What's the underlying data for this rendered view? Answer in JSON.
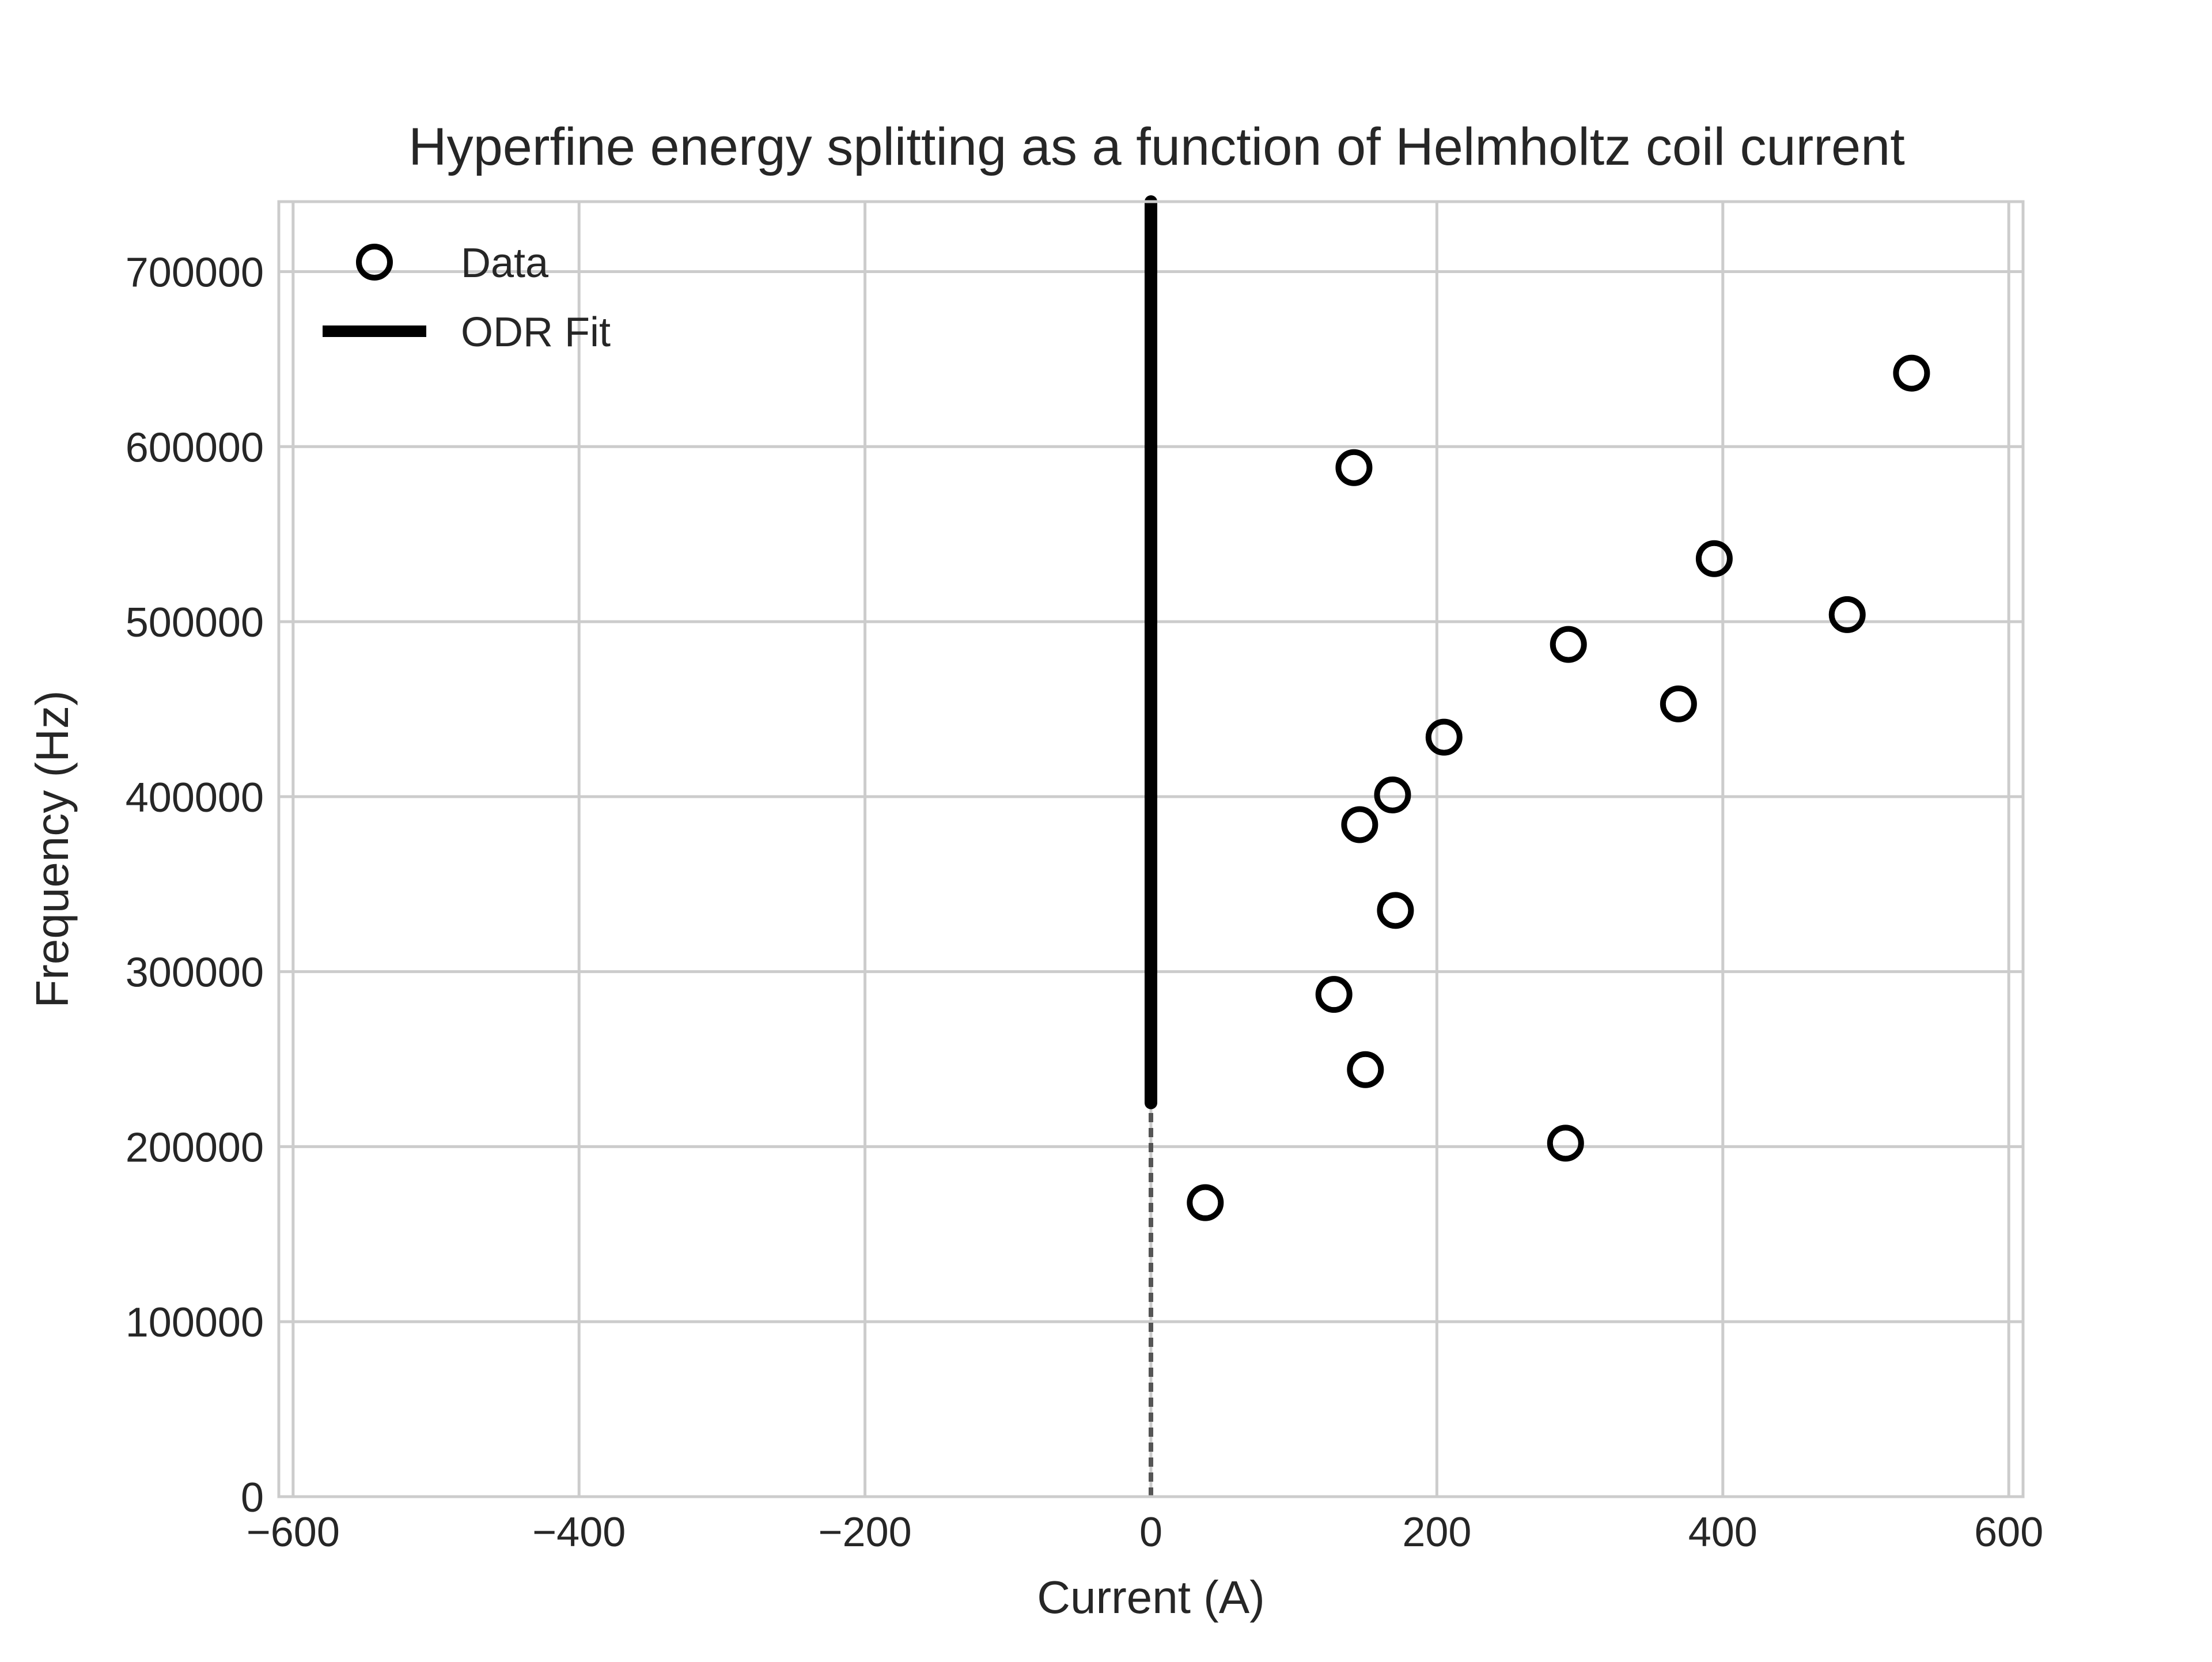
{
  "chart_data": {
    "type": "scatter",
    "title": "Hyperfine energy splitting as a function of Helmholtz coil current",
    "xlabel": "Current (A)",
    "ylabel": "Frequency (Hz)",
    "xlim": [
      -610,
      610
    ],
    "ylim": [
      0,
      740000
    ],
    "x_ticks": [
      -600,
      -400,
      -200,
      0,
      200,
      400,
      600
    ],
    "x_tick_labels": [
      "−600",
      "−400",
      "−200",
      "0",
      "200",
      "400",
      "600"
    ],
    "y_ticks": [
      0,
      100000,
      200000,
      300000,
      400000,
      500000,
      600000,
      700000
    ],
    "y_tick_labels": [
      "0",
      "100000",
      "200000",
      "300000",
      "400000",
      "500000",
      "600000",
      "700000"
    ],
    "grid": true,
    "legend_position": "top-left",
    "series": [
      {
        "name": "Data",
        "kind": "scatter",
        "marker": "open-circle",
        "color": "#000000",
        "points": [
          {
            "x": 38,
            "y": 168000
          },
          {
            "x": 128,
            "y": 287000
          },
          {
            "x": 142,
            "y": 588000
          },
          {
            "x": 146,
            "y": 384000
          },
          {
            "x": 150,
            "y": 244000
          },
          {
            "x": 169,
            "y": 401000
          },
          {
            "x": 171,
            "y": 335000
          },
          {
            "x": 205,
            "y": 434000
          },
          {
            "x": 290,
            "y": 202000
          },
          {
            "x": 292,
            "y": 487000
          },
          {
            "x": 369,
            "y": 453000
          },
          {
            "x": 394,
            "y": 536000
          },
          {
            "x": 487,
            "y": 504000
          },
          {
            "x": 532,
            "y": 642000
          }
        ]
      },
      {
        "name": "ODR Fit",
        "kind": "line",
        "color": "#000000",
        "points": [
          {
            "x": 0,
            "y": 225000
          },
          {
            "x": 0,
            "y": 740000
          }
        ],
        "extension": {
          "style": "dashed",
          "color": "#555555",
          "points": [
            {
              "x": 0,
              "y": 0
            },
            {
              "x": 0,
              "y": 225000
            }
          ]
        }
      }
    ]
  }
}
